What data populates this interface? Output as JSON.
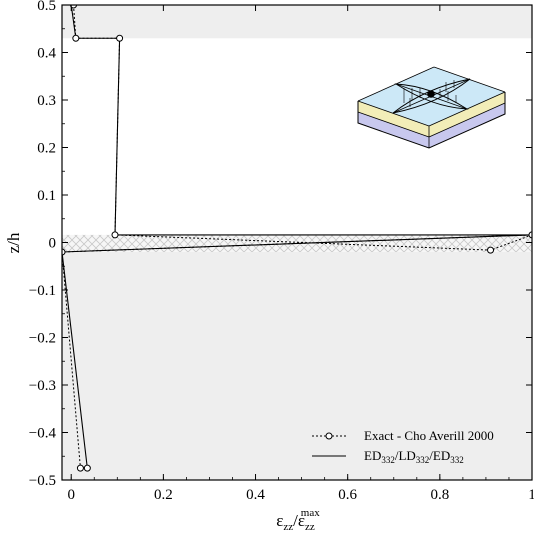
{
  "chart_data": {
    "type": "line",
    "xlim": [
      -0.02,
      1.0
    ],
    "ylim": [
      -0.5,
      0.5
    ],
    "x_ticks": [
      0,
      0.2,
      0.4,
      0.6,
      0.8,
      1
    ],
    "x_tick_labels": [
      "0",
      "0.2",
      "0.4",
      "0.6",
      "0.8",
      "1"
    ],
    "y_ticks": [
      -0.5,
      -0.4,
      -0.3,
      -0.2,
      -0.1,
      0,
      0.1,
      0.2,
      0.3,
      0.4,
      0.5
    ],
    "y_tick_labels": [
      "−0.5",
      "−0.4",
      "−0.3",
      "−0.2",
      "−0.1",
      "0",
      "0.1",
      "0.2",
      "0.3",
      "0.4",
      "0.5"
    ],
    "xlabel": {
      "base": "ε",
      "sub1": "zz",
      "slash": "/ε",
      "sub2": "zz",
      "sup2": "max"
    },
    "ylabel": "z/h",
    "shaded_bands": [
      {
        "from": 0.43,
        "to": 0.5,
        "style": "solid",
        "color": "#eeeeee"
      },
      {
        "from": -0.02,
        "to": 0.016,
        "style": "hatched",
        "color": "#cccccc"
      },
      {
        "from": -0.5,
        "to": -0.02,
        "style": "solid",
        "color": "#eeeeee"
      }
    ],
    "series": [
      {
        "name": "Exact - Cho Averill 2000",
        "style": "dotted",
        "marker": "circle",
        "x": [
          0.005,
          0.01,
          0.105,
          0.095,
          0.91,
          1.0,
          -0.02,
          0.02,
          0.035
        ],
        "y": [
          0.5,
          0.43,
          0.43,
          0.016,
          -0.016,
          0.016,
          -0.02,
          -0.475,
          -0.475
        ]
      },
      {
        "name": "ED332/LD332/ED332",
        "style": "solid",
        "marker": "none",
        "x": [
          0.0,
          0.01,
          0.105,
          0.095,
          1.0,
          -0.02,
          0.035
        ],
        "y": [
          0.5,
          0.43,
          0.43,
          0.016,
          0.016,
          -0.02,
          -0.475
        ]
      }
    ],
    "legend": {
      "position": "bottom-right",
      "entries": [
        {
          "label": "Exact - Cho Averill 2000",
          "style": "dotted",
          "marker": "circle"
        },
        {
          "label": "ED",
          "sub1": "332",
          "mid1": "/LD",
          "sub2": "332",
          "mid2": "/ED",
          "sub3": "332",
          "style": "solid"
        }
      ]
    },
    "inset": "laminated plate icon",
    "inset_colors": {
      "top": "#cce8f7",
      "middle": "#f2edb8",
      "bottom": "#c8c8ee",
      "point": "#000000"
    }
  }
}
